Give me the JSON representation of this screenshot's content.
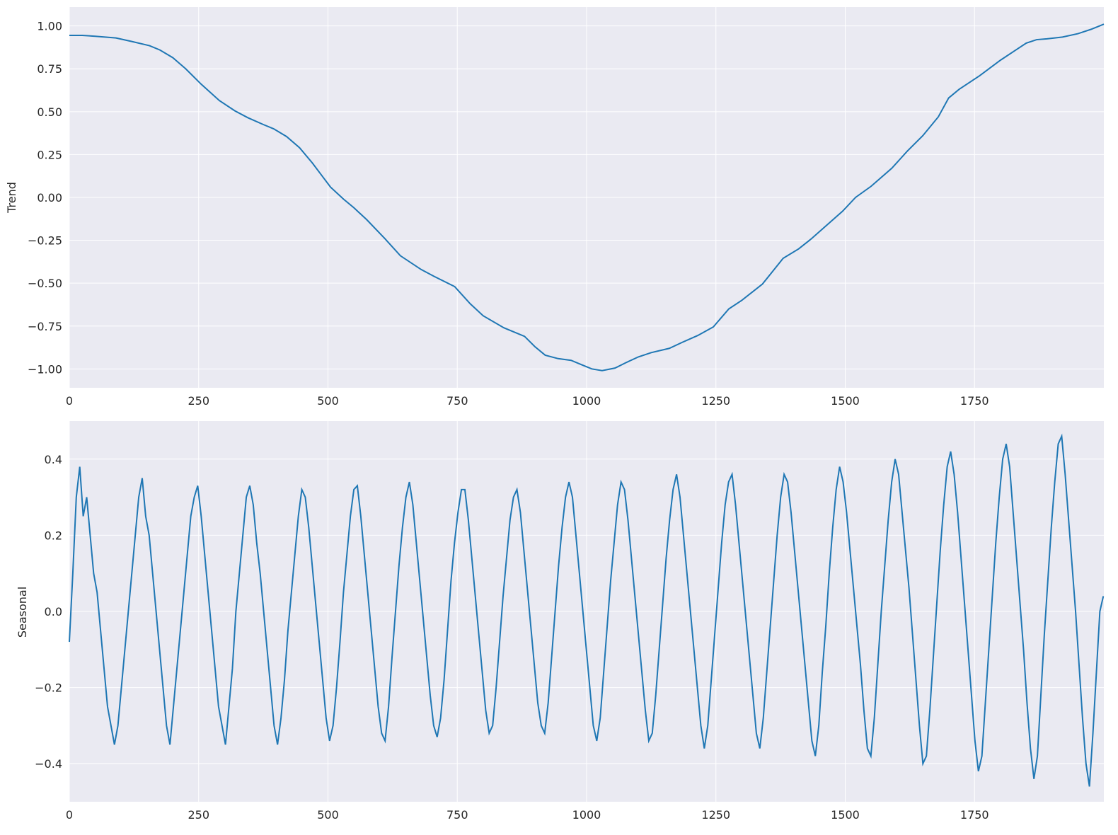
{
  "chart_data": [
    {
      "type": "line",
      "title": "",
      "xlabel": "",
      "ylabel": "Trend",
      "xlim": [
        0,
        2000
      ],
      "ylim": [
        -1.11,
        1.11
      ],
      "grid": true,
      "color": "#1f77b4",
      "background": "#eaeaf2",
      "xticks": [
        0,
        250,
        500,
        750,
        1000,
        1250,
        1500,
        1750
      ],
      "xtick_labels": [
        "0",
        "250",
        "500",
        "750",
        "1000",
        "1250",
        "1500",
        "1750"
      ],
      "yticks": [
        1.0,
        0.75,
        0.5,
        0.25,
        0.0,
        -0.25,
        -0.5,
        -0.75,
        -1.0
      ],
      "ytick_labels": [
        "1.00",
        "0.75",
        "0.50",
        "0.25",
        "0.00",
        "−0.25",
        "−0.50",
        "−0.75",
        "−1.00"
      ],
      "series": [
        {
          "x": [
            0,
            25,
            50,
            90,
            120,
            155,
            175,
            200,
            225,
            255,
            290,
            320,
            345,
            375,
            395,
            420,
            445,
            470,
            490,
            505,
            530,
            550,
            575,
            610,
            640,
            680,
            705,
            745,
            775,
            800,
            840,
            880,
            900,
            920,
            945,
            970,
            990,
            1010,
            1030,
            1055,
            1075,
            1100,
            1125,
            1160,
            1185,
            1215,
            1245,
            1275,
            1300,
            1340,
            1380,
            1410,
            1435,
            1465,
            1495,
            1520,
            1550,
            1590,
            1620,
            1650,
            1680,
            1700,
            1720,
            1760,
            1800,
            1830,
            1850,
            1870,
            1890,
            1920,
            1950,
            1975,
            2000
          ],
          "y": [
            0.945,
            0.945,
            0.94,
            0.93,
            0.91,
            0.885,
            0.86,
            0.815,
            0.75,
            0.66,
            0.565,
            0.505,
            0.465,
            0.425,
            0.4,
            0.355,
            0.29,
            0.2,
            0.12,
            0.06,
            -0.01,
            -0.06,
            -0.13,
            -0.24,
            -0.34,
            -0.42,
            -0.46,
            -0.52,
            -0.62,
            -0.69,
            -0.76,
            -0.81,
            -0.87,
            -0.92,
            -0.94,
            -0.95,
            -0.975,
            -1.0,
            -1.01,
            -0.995,
            -0.965,
            -0.93,
            -0.905,
            -0.88,
            -0.845,
            -0.805,
            -0.755,
            -0.65,
            -0.6,
            -0.505,
            -0.355,
            -0.3,
            -0.24,
            -0.16,
            -0.08,
            0.0,
            0.065,
            0.17,
            0.27,
            0.36,
            0.47,
            0.58,
            0.63,
            0.71,
            0.8,
            0.86,
            0.9,
            0.92,
            0.925,
            0.935,
            0.955,
            0.98,
            1.01
          ]
        }
      ]
    },
    {
      "type": "line",
      "title": "",
      "xlabel": "",
      "ylabel": "Seasonal",
      "xlim": [
        0,
        2000
      ],
      "ylim": [
        -0.5,
        0.5
      ],
      "grid": true,
      "color": "#1f77b4",
      "background": "#eaeaf2",
      "xticks": [
        0,
        250,
        500,
        750,
        1000,
        1250,
        1500,
        1750
      ],
      "xtick_labels": [
        "0",
        "250",
        "500",
        "750",
        "1000",
        "1250",
        "1500",
        "1750"
      ],
      "yticks": [
        0.4,
        0.2,
        0.0,
        -0.2,
        -0.4
      ],
      "ytick_labels": [
        "0.4",
        "0.2",
        "0.0",
        "−0.2",
        "−0.4"
      ],
      "series": [
        {
          "samples_per_unit": 1,
          "x_start": 0,
          "x_end": 1999,
          "y_samples": [
            -0.08,
            0.1,
            0.3,
            0.38,
            0.25,
            0.3,
            0.2,
            0.1,
            0.05,
            -0.05,
            -0.15,
            -0.25,
            -0.3,
            -0.35,
            -0.3,
            -0.2,
            -0.1,
            0.0,
            0.1,
            0.2,
            0.3,
            0.35,
            0.25,
            0.2,
            0.1,
            0.0,
            -0.1,
            -0.2,
            -0.3,
            -0.35,
            -0.25,
            -0.15,
            -0.05,
            0.05,
            0.15,
            0.25,
            0.3,
            0.33,
            0.25,
            0.15,
            0.05,
            -0.05,
            -0.15,
            -0.25,
            -0.3,
            -0.35,
            -0.25,
            -0.15,
            0.0,
            0.1,
            0.2,
            0.3,
            0.33,
            0.28,
            0.18,
            0.1,
            0.0,
            -0.1,
            -0.2,
            -0.3,
            -0.35,
            -0.28,
            -0.18,
            -0.05,
            0.05,
            0.15,
            0.25,
            0.32,
            0.3,
            0.22,
            0.12,
            0.02,
            -0.08,
            -0.18,
            -0.28,
            -0.34,
            -0.3,
            -0.2,
            -0.08,
            0.05,
            0.15,
            0.25,
            0.32,
            0.33,
            0.25,
            0.15,
            0.05,
            -0.05,
            -0.15,
            -0.25,
            -0.32,
            -0.34,
            -0.25,
            -0.12,
            0.0,
            0.12,
            0.22,
            0.3,
            0.34,
            0.28,
            0.18,
            0.08,
            -0.02,
            -0.12,
            -0.22,
            -0.3,
            -0.33,
            -0.28,
            -0.18,
            -0.05,
            0.08,
            0.18,
            0.26,
            0.32,
            0.32,
            0.24,
            0.14,
            0.04,
            -0.06,
            -0.16,
            -0.26,
            -0.32,
            -0.3,
            -0.2,
            -0.08,
            0.04,
            0.14,
            0.24,
            0.3,
            0.32,
            0.26,
            0.16,
            0.06,
            -0.04,
            -0.14,
            -0.24,
            -0.3,
            -0.32,
            -0.24,
            -0.12,
            0.0,
            0.12,
            0.22,
            0.3,
            0.34,
            0.3,
            0.2,
            0.1,
            0.0,
            -0.1,
            -0.2,
            -0.3,
            -0.34,
            -0.28,
            -0.16,
            -0.04,
            0.08,
            0.18,
            0.28,
            0.34,
            0.32,
            0.24,
            0.14,
            0.04,
            -0.06,
            -0.16,
            -0.26,
            -0.34,
            -0.32,
            -0.22,
            -0.1,
            0.02,
            0.14,
            0.24,
            0.32,
            0.36,
            0.3,
            0.2,
            0.1,
            0.0,
            -0.1,
            -0.2,
            -0.3,
            -0.36,
            -0.3,
            -0.18,
            -0.06,
            0.06,
            0.18,
            0.28,
            0.34,
            0.36,
            0.28,
            0.18,
            0.08,
            -0.02,
            -0.12,
            -0.22,
            -0.32,
            -0.36,
            -0.28,
            -0.16,
            -0.04,
            0.08,
            0.2,
            0.3,
            0.36,
            0.34,
            0.26,
            0.16,
            0.06,
            -0.04,
            -0.14,
            -0.24,
            -0.34,
            -0.38,
            -0.3,
            -0.16,
            -0.04,
            0.1,
            0.22,
            0.32,
            0.38,
            0.34,
            0.26,
            0.16,
            0.06,
            -0.04,
            -0.14,
            -0.26,
            -0.36,
            -0.38,
            -0.28,
            -0.14,
            0.0,
            0.12,
            0.24,
            0.34,
            0.4,
            0.36,
            0.26,
            0.16,
            0.06,
            -0.06,
            -0.18,
            -0.3,
            -0.4,
            -0.38,
            -0.26,
            -0.12,
            0.02,
            0.16,
            0.28,
            0.38,
            0.42,
            0.36,
            0.26,
            0.14,
            0.02,
            -0.1,
            -0.22,
            -0.34,
            -0.42,
            -0.38,
            -0.24,
            -0.1,
            0.04,
            0.18,
            0.3,
            0.4,
            0.44,
            0.38,
            0.26,
            0.14,
            0.02,
            -0.1,
            -0.24,
            -0.36,
            -0.44,
            -0.38,
            -0.22,
            -0.06,
            0.08,
            0.22,
            0.34,
            0.44,
            0.46,
            0.36,
            0.24,
            0.12,
            0.0,
            -0.14,
            -0.28,
            -0.4,
            -0.46,
            -0.32,
            -0.16,
            0.0,
            0.04
          ]
        }
      ]
    }
  ]
}
